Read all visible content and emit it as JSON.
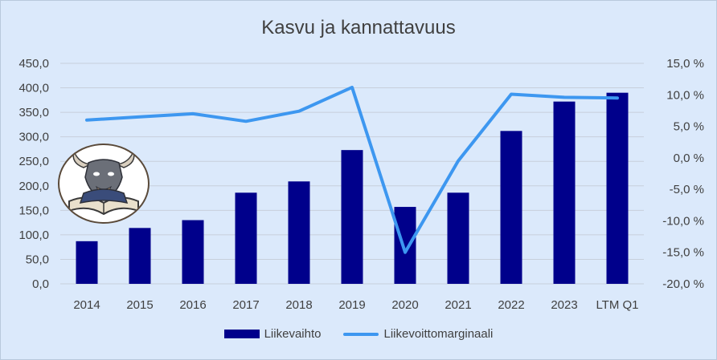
{
  "chart_data": {
    "type": "bar+line",
    "title": "Kasvu ja kannattavuus",
    "categories": [
      "2014",
      "2015",
      "2016",
      "2017",
      "2018",
      "2019",
      "2020",
      "2021",
      "2022",
      "2023",
      "LTM Q1"
    ],
    "series": [
      {
        "name": "Liikevaihto",
        "type": "bar",
        "axis": "left",
        "values": [
          87,
          114,
          130,
          186,
          209,
          273,
          157,
          186,
          312,
          372,
          390
        ]
      },
      {
        "name": "Liikevoittomarginaali",
        "type": "line",
        "axis": "right",
        "values": [
          6.0,
          6.5,
          7.0,
          5.8,
          7.4,
          11.2,
          -15.0,
          -0.5,
          10.1,
          9.6,
          9.5
        ]
      }
    ],
    "y_left": {
      "ylim": [
        0,
        450
      ],
      "ticks": [
        "0,0",
        "50,0",
        "100,0",
        "150,0",
        "200,0",
        "250,0",
        "300,0",
        "350,0",
        "400,0",
        "450,0"
      ]
    },
    "y_right": {
      "ylim": [
        -20,
        15
      ],
      "ticks": [
        "-20,0 %",
        "-15,0 %",
        "-10,0 %",
        "-5,0 %",
        "0,0 %",
        "5,0 %",
        "10,0 %",
        "15,0 %"
      ]
    },
    "grid": true,
    "legend": "bottom",
    "colors": {
      "bar": "#00008b",
      "line": "#3d97f0",
      "background": "#dbe9fb",
      "grid": "#c7cfdb"
    }
  },
  "legend": {
    "bar_label": "Liikevaihto",
    "line_label": "Liikevoittomarginaali"
  },
  "logo": {
    "icon": "bull-reading-book-logo"
  }
}
